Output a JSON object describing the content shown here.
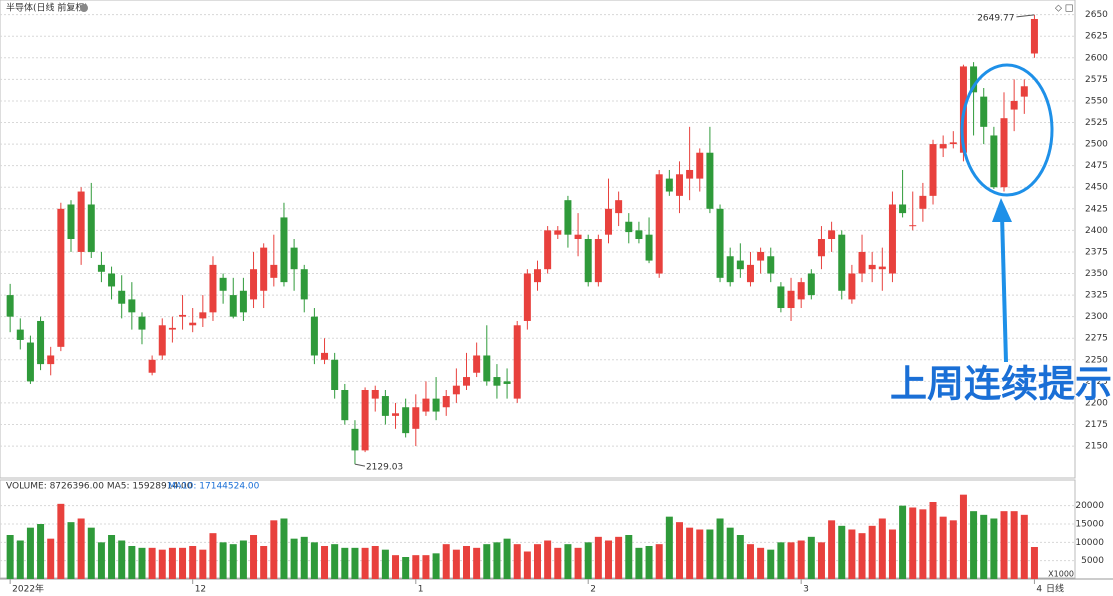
{
  "chart_data": {
    "type": "candlestick",
    "title": "半导体(日线 前复权)",
    "volume_title": "VOLUME: 8726396.00  MA5: 15928914.00",
    "volume_ma10": "MA10: 17144524.00",
    "period_label": "日线",
    "volume_unit": "X1000",
    "annotation": "上周连续提示",
    "up_color": "#e8413d",
    "down_color": "#2f9a3a",
    "grid": true,
    "ylim": [
      2113,
      2667
    ],
    "yticks": [
      2150,
      2175,
      2200,
      2225,
      2250,
      2275,
      2300,
      2325,
      2350,
      2375,
      2400,
      2425,
      2450,
      2475,
      2500,
      2525,
      2550,
      2575,
      2600,
      2625,
      2650
    ],
    "vol_ylim": [
      0,
      27000
    ],
    "vol_yticks": [
      5000,
      10000,
      15000,
      20000
    ],
    "xlim": [
      -1,
      105
    ],
    "xticks": [
      {
        "value": 0,
        "label": "2022年"
      },
      {
        "value": 18,
        "label": "12"
      },
      {
        "value": 40,
        "label": "1"
      },
      {
        "value": 57,
        "label": "2"
      },
      {
        "value": 78,
        "label": "3"
      },
      {
        "value": 101,
        "label": "4"
      }
    ],
    "open": [
      2325,
      2285,
      2270,
      2295,
      2245,
      2265,
      2430,
      2375,
      2430,
      2360,
      2350,
      2330,
      2320,
      2300,
      2235,
      2255,
      2285,
      2300,
      2290,
      2298,
      2305,
      2345,
      2325,
      2330,
      2320,
      2330,
      2345,
      2415,
      2380,
      2355,
      2300,
      2250,
      2250,
      2215,
      2170,
      2145,
      2205,
      2208,
      2185,
      2195,
      2170,
      2190,
      2205,
      2195,
      2210,
      2220,
      2235,
      2255,
      2230,
      2225,
      2205,
      2295,
      2340,
      2355,
      2395,
      2435,
      2390,
      2390,
      2340,
      2395,
      2420,
      2410,
      2400,
      2395,
      2350,
      2460,
      2440,
      2460,
      2460,
      2490,
      2425,
      2370,
      2365,
      2340,
      2365,
      2370,
      2335,
      2310,
      2320,
      2350,
      2370,
      2390,
      2395,
      2320,
      2350,
      2355,
      2355,
      2350,
      2430,
      2405,
      2425,
      2440,
      2495,
      2500,
      2490,
      2590,
      2555,
      2510,
      2450,
      2540,
      2555,
      2605
    ],
    "high": [
      2338,
      2298,
      2278,
      2300,
      2265,
      2432,
      2435,
      2450,
      2455,
      2375,
      2358,
      2348,
      2340,
      2305,
      2255,
      2298,
      2300,
      2325,
      2310,
      2325,
      2370,
      2350,
      2345,
      2345,
      2375,
      2385,
      2395,
      2432,
      2390,
      2360,
      2310,
      2275,
      2258,
      2222,
      2180,
      2218,
      2220,
      2215,
      2200,
      2205,
      2210,
      2225,
      2230,
      2215,
      2240,
      2258,
      2270,
      2290,
      2245,
      2240,
      2295,
      2355,
      2365,
      2405,
      2405,
      2440,
      2420,
      2395,
      2395,
      2460,
      2445,
      2420,
      2410,
      2415,
      2470,
      2470,
      2480,
      2520,
      2495,
      2520,
      2430,
      2380,
      2385,
      2375,
      2380,
      2380,
      2340,
      2345,
      2345,
      2355,
      2405,
      2410,
      2400,
      2360,
      2395,
      2375,
      2380,
      2445,
      2470,
      2445,
      2455,
      2505,
      2510,
      2515,
      2592,
      2595,
      2565,
      2520,
      2560,
      2575,
      2575,
      2649.77
    ],
    "low": [
      2282,
      2262,
      2222,
      2238,
      2232,
      2260,
      2375,
      2360,
      2368,
      2340,
      2320,
      2298,
      2285,
      2268,
      2232,
      2250,
      2270,
      2285,
      2282,
      2288,
      2295,
      2315,
      2298,
      2295,
      2310,
      2310,
      2335,
      2335,
      2330,
      2305,
      2245,
      2245,
      2205,
      2175,
      2129.03,
      2143,
      2190,
      2175,
      2170,
      2160,
      2150,
      2185,
      2180,
      2185,
      2200,
      2215,
      2230,
      2220,
      2205,
      2205,
      2200,
      2285,
      2330,
      2350,
      2390,
      2380,
      2370,
      2335,
      2335,
      2385,
      2405,
      2385,
      2385,
      2362,
      2345,
      2440,
      2420,
      2435,
      2445,
      2420,
      2340,
      2335,
      2345,
      2335,
      2350,
      2340,
      2305,
      2295,
      2310,
      2320,
      2355,
      2375,
      2320,
      2315,
      2340,
      2340,
      2330,
      2340,
      2415,
      2400,
      2410,
      2430,
      2485,
      2495,
      2480,
      2510,
      2500,
      2448,
      2445,
      2515,
      2535,
      2600
    ],
    "close": [
      2300,
      2273,
      2225,
      2245,
      2255,
      2425,
      2390,
      2445,
      2375,
      2352,
      2335,
      2315,
      2305,
      2285,
      2250,
      2290,
      2287,
      2302,
      2293,
      2305,
      2360,
      2330,
      2300,
      2305,
      2355,
      2380,
      2360,
      2340,
      2355,
      2320,
      2255,
      2258,
      2215,
      2180,
      2145,
      2215,
      2215,
      2185,
      2188,
      2165,
      2195,
      2205,
      2190,
      2208,
      2220,
      2230,
      2255,
      2225,
      2220,
      2222,
      2290,
      2350,
      2355,
      2400,
      2400,
      2395,
      2395,
      2340,
      2390,
      2425,
      2435,
      2398,
      2390,
      2365,
      2465,
      2445,
      2465,
      2470,
      2490,
      2425,
      2345,
      2340,
      2355,
      2360,
      2375,
      2350,
      2310,
      2330,
      2340,
      2325,
      2390,
      2400,
      2330,
      2350,
      2375,
      2360,
      2358,
      2430,
      2420,
      2406,
      2440,
      2500,
      2500,
      2502,
      2590,
      2560,
      2520,
      2450,
      2530,
      2550,
      2567,
      2645
    ],
    "volume": [
      12000,
      10500,
      14000,
      15000,
      11000,
      20500,
      15500,
      16500,
      14000,
      10000,
      12000,
      10500,
      9000,
      8500,
      8500,
      8000,
      8500,
      8500,
      9000,
      8000,
      12500,
      10000,
      9500,
      10500,
      12000,
      9000,
      16000,
      16500,
      11000,
      11500,
      10000,
      9000,
      9500,
      8500,
      8500,
      8500,
      9000,
      8000,
      6500,
      6000,
      6500,
      6500,
      7000,
      9500,
      8000,
      9000,
      8500,
      9500,
      10000,
      11000,
      9500,
      7500,
      9500,
      10500,
      8500,
      9500,
      8500,
      10000,
      11500,
      10500,
      11500,
      12000,
      8500,
      9000,
      9500,
      17000,
      15500,
      14000,
      13500,
      13500,
      16500,
      14000,
      12000,
      9500,
      8500,
      8000,
      10000,
      10000,
      10500,
      11500,
      10000,
      16000,
      14500,
      13500,
      12500,
      14500,
      16500,
      13500,
      20000,
      19500,
      19000,
      21000,
      17000,
      16000,
      23000,
      18500,
      17500,
      16500,
      18500,
      18500,
      17500,
      8726.396
    ]
  }
}
